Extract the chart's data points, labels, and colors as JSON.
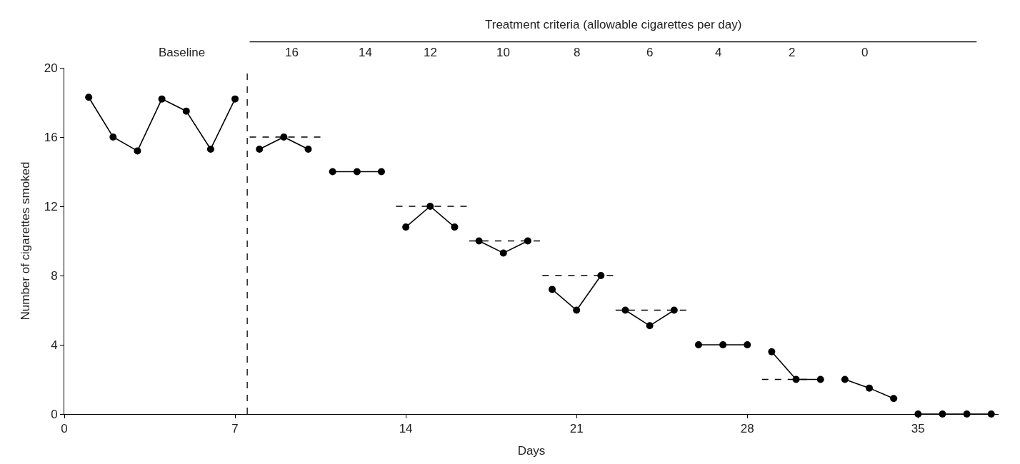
{
  "chart_data": {
    "type": "line",
    "xlabel": "Days",
    "ylabel": "Number of cigarettes smoked",
    "xlim": [
      0,
      38.3
    ],
    "xticks": [
      0,
      7,
      14,
      21,
      28,
      35
    ],
    "ylim": [
      0,
      20
    ],
    "yticks": [
      0,
      4,
      8,
      12,
      16,
      20
    ],
    "marker": "circle",
    "annotations": [
      "Baseline",
      "Treatment criteria (allowable cigarettes per day)",
      "16",
      "14",
      "12",
      "10",
      "8",
      "6",
      "4",
      "2",
      "0"
    ],
    "ref_lines": [
      {
        "axis": "x",
        "value": 7.5,
        "label": null,
        "line_style": "dashed",
        "color": "#000000"
      }
    ],
    "series": [
      {
        "color": "#000000",
        "x": [
          1,
          2,
          3,
          4,
          5,
          6,
          7
        ],
        "values": [
          18.3,
          16,
          15.2,
          18.2,
          17.5,
          15.3,
          18.2
        ]
      },
      {
        "color": "#000000",
        "x": [
          8,
          9,
          10
        ],
        "values": [
          15.3,
          16,
          15.3
        ]
      },
      {
        "color": "#000000",
        "x": [
          11,
          12,
          13
        ],
        "values": [
          14,
          14,
          14
        ]
      },
      {
        "color": "#000000",
        "x": [
          14,
          15,
          16
        ],
        "values": [
          10.8,
          12,
          10.8
        ]
      },
      {
        "color": "#000000",
        "x": [
          17,
          18,
          19
        ],
        "values": [
          10,
          9.3,
          10
        ]
      },
      {
        "color": "#000000",
        "x": [
          20,
          21,
          22
        ],
        "values": [
          7.2,
          6,
          8
        ]
      },
      {
        "color": "#000000",
        "x": [
          23,
          24,
          25
        ],
        "values": [
          6,
          5.1,
          6
        ]
      },
      {
        "color": "#000000",
        "x": [
          26,
          27,
          28
        ],
        "values": [
          4,
          4,
          4
        ]
      },
      {
        "color": "#000000",
        "x": [
          29,
          30,
          31
        ],
        "values": [
          3.6,
          2,
          2
        ]
      },
      {
        "color": "#000000",
        "x": [
          32,
          33,
          34
        ],
        "values": [
          2,
          1.5,
          0.9
        ]
      },
      {
        "color": "#000000",
        "x": [
          35,
          36,
          37,
          38
        ],
        "values": [
          0,
          0,
          0,
          0
        ]
      },
      {
        "color": "#000000",
        "x": [
          7.6,
          10.5
        ],
        "values": [
          16,
          16
        ],
        "marker": "none",
        "line_style": "dashed"
      },
      {
        "color": "#000000",
        "x": [
          13.6,
          16.5
        ],
        "values": [
          12,
          12
        ],
        "marker": "none",
        "line_style": "dashed"
      },
      {
        "color": "#000000",
        "x": [
          16.6,
          19.5
        ],
        "values": [
          10,
          10
        ],
        "marker": "none",
        "line_style": "dashed"
      },
      {
        "color": "#000000",
        "x": [
          19.6,
          22.5
        ],
        "values": [
          8,
          8
        ],
        "marker": "none",
        "line_style": "dashed"
      },
      {
        "color": "#000000",
        "x": [
          22.6,
          25.5
        ],
        "values": [
          6,
          6
        ],
        "marker": "none",
        "line_style": "dashed"
      },
      {
        "color": "#000000",
        "x": [
          28.6,
          30.5
        ],
        "values": [
          2,
          2
        ],
        "marker": "none",
        "line_style": "dashed"
      }
    ]
  }
}
